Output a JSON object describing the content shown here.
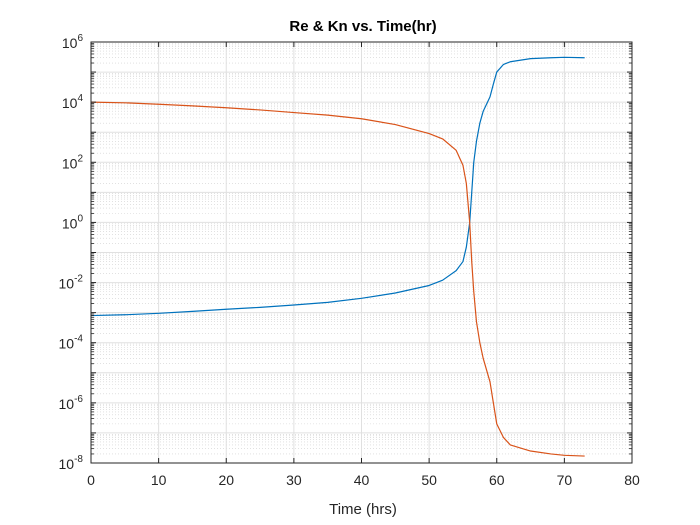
{
  "chart_data": {
    "type": "line",
    "title": "Re & Kn vs. Time(hr)",
    "xlabel": "Time (hrs)",
    "ylabel": "",
    "xlim": [
      0,
      80
    ],
    "ylim": [
      1e-08,
      1000000.0
    ],
    "yscale": "log",
    "grid": "major and minor",
    "xticks": [
      0,
      10,
      20,
      30,
      40,
      50,
      60,
      70,
      80
    ],
    "yticks": [
      {
        "base": "10",
        "exp": "-8"
      },
      {
        "base": "10",
        "exp": "-6"
      },
      {
        "base": "10",
        "exp": "-4"
      },
      {
        "base": "10",
        "exp": "-2"
      },
      {
        "base": "10",
        "exp": "0"
      },
      {
        "base": "10",
        "exp": "2"
      },
      {
        "base": "10",
        "exp": "4"
      },
      {
        "base": "10",
        "exp": "6"
      }
    ],
    "series": [
      {
        "color": "#0072BD",
        "x": [
          0,
          5,
          10,
          15,
          20,
          25,
          30,
          35,
          40,
          45,
          50,
          52,
          54,
          55,
          55.5,
          56,
          56.3,
          56.6,
          57,
          57.5,
          58,
          59,
          59.5,
          60,
          61,
          62,
          65,
          68,
          70,
          73
        ],
        "y": [
          0.0008,
          0.00085,
          0.00095,
          0.0011,
          0.0013,
          0.0015,
          0.0018,
          0.0022,
          0.003,
          0.0045,
          0.008,
          0.012,
          0.025,
          0.05,
          0.15,
          1,
          10,
          100,
          500,
          2000,
          5000,
          15000,
          40000,
          100000,
          180000,
          220000,
          280000,
          300000,
          310000,
          300000
        ]
      },
      {
        "color": "#D95319",
        "x": [
          0,
          5,
          10,
          15,
          20,
          25,
          30,
          35,
          40,
          45,
          50,
          52,
          54,
          55,
          55.5,
          56,
          56.3,
          56.6,
          57,
          57.5,
          58,
          59,
          59.5,
          60,
          61,
          62,
          65,
          68,
          70,
          73
        ],
        "y": [
          10000,
          9500,
          8500,
          7500,
          6500,
          5500,
          4500,
          3700,
          2800,
          1800,
          900,
          600,
          250,
          80,
          20,
          1,
          0.05,
          0.005,
          0.0005,
          0.0001,
          3e-05,
          5e-06,
          1e-06,
          2e-07,
          7e-08,
          4e-08,
          2.5e-08,
          2e-08,
          1.8e-08,
          1.7e-08
        ]
      }
    ]
  }
}
